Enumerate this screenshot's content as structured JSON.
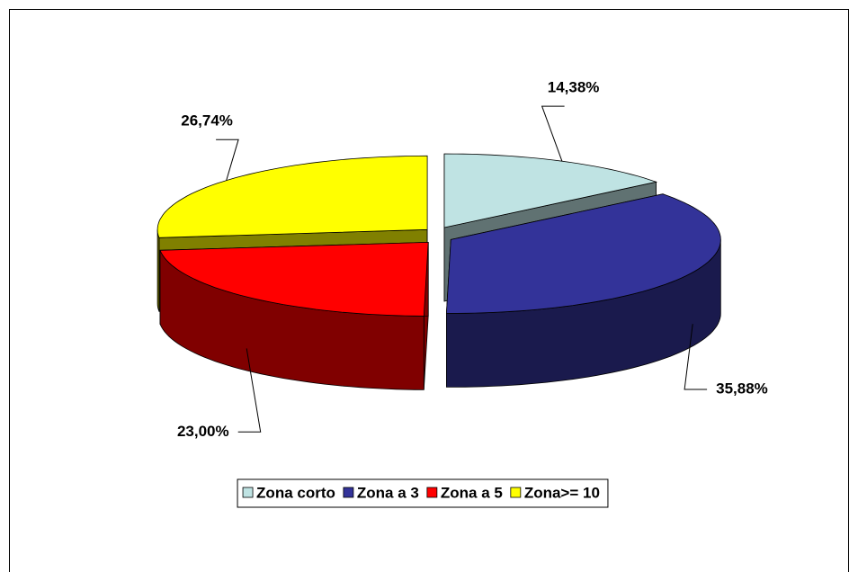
{
  "chart_data": {
    "type": "pie",
    "categories": [
      "Zona corto",
      "Zona a 3",
      "Zona a 5",
      "Zona>= 10"
    ],
    "values": [
      14.38,
      35.88,
      23.0,
      26.74
    ],
    "value_labels": [
      "14,38%",
      "35,88%",
      "23,00%",
      "26,74%"
    ],
    "colors": [
      "#BFE3E3",
      "#333399",
      "#FF0000",
      "#FFFF00"
    ],
    "legend": "bottom"
  }
}
